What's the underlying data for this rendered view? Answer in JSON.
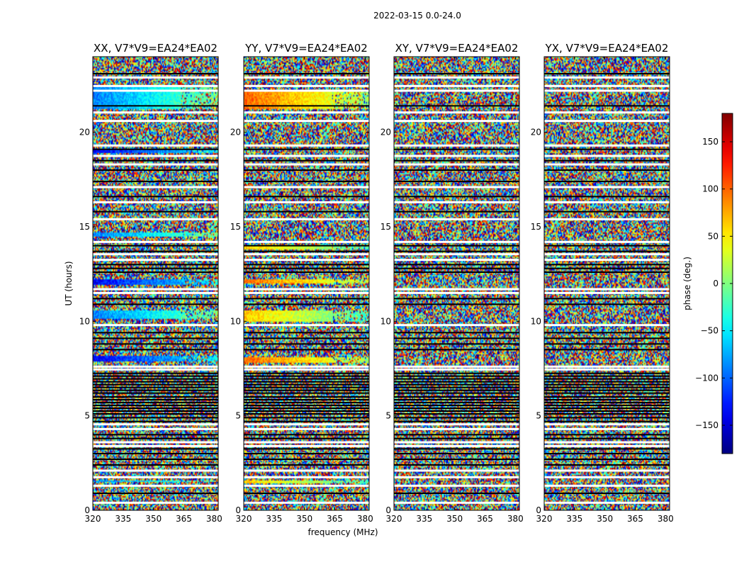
{
  "chart_data": {
    "type": "heatmap",
    "title": "2022-03-15 0.0-24.0",
    "xlabel": "frequency (MHz)",
    "ylabel": "UT (hours)",
    "xlim": [
      320,
      382
    ],
    "ylim": [
      0,
      24
    ],
    "x_ticks": [
      "320",
      "335",
      "350",
      "365",
      "380"
    ],
    "x_tick_values": [
      320,
      335,
      350,
      365,
      380
    ],
    "y_ticks": [
      "0",
      "5",
      "10",
      "15",
      "20"
    ],
    "y_tick_values": [
      0,
      5,
      10,
      15,
      20
    ],
    "panels": [
      {
        "title": "XX, V7*V9=EA24*EA02",
        "coherent_bands_ut": [
          [
            1.5,
            1.6
          ],
          [
            7.9,
            8.2
          ],
          [
            10.1,
            10.6
          ],
          [
            11.9,
            12.2
          ],
          [
            14.5,
            14.7
          ],
          [
            18.9,
            19.1
          ],
          [
            21.2,
            22.4
          ]
        ]
      },
      {
        "title": "YY, V7*V9=EA24*EA02",
        "coherent_bands_ut": [
          [
            1.4,
            1.6
          ],
          [
            7.8,
            8.1
          ],
          [
            10.0,
            10.6
          ],
          [
            12.0,
            12.2
          ],
          [
            13.8,
            14.0
          ],
          [
            21.2,
            22.2
          ]
        ]
      },
      {
        "title": "XY, V7*V9=EA24*EA02",
        "coherent_bands_ut": []
      },
      {
        "title": "YX, V7*V9=EA24*EA02",
        "coherent_bands_ut": []
      }
    ],
    "flagged_gaps_ut": [
      0.4,
      1.3,
      1.75,
      2.1,
      3.4,
      3.6,
      4.3,
      4.55,
      7.45,
      7.6,
      9.8,
      11.5,
      11.7,
      13.25,
      13.55,
      14.2,
      15.4,
      16.3,
      17.1,
      18.3,
      18.75,
      19.3,
      20.6,
      21.05,
      22.2,
      22.45,
      22.9
    ],
    "black_lines_ut": [
      0.9,
      2.4,
      2.7,
      3.0,
      3.25,
      3.8,
      4.0,
      4.7,
      4.9,
      5.1,
      5.25,
      5.4,
      5.55,
      5.7,
      5.85,
      6.0,
      6.2,
      6.35,
      6.5,
      6.65,
      6.8,
      6.95,
      7.1,
      7.25,
      8.5,
      8.8,
      9.1,
      9.4,
      10.9,
      11.2,
      12.6,
      12.8,
      13.0,
      13.7,
      14.0,
      15.8,
      16.6,
      17.4,
      18.0,
      18.5,
      19.1,
      21.4,
      23.1
    ],
    "colorbar": {
      "label": "phase (deg.)",
      "range": [
        -180,
        180
      ],
      "ticks": [
        "150",
        "100",
        "50",
        "0",
        "−50",
        "−100",
        "−150"
      ],
      "tick_values": [
        150,
        100,
        50,
        0,
        -50,
        -100,
        -150
      ]
    }
  }
}
